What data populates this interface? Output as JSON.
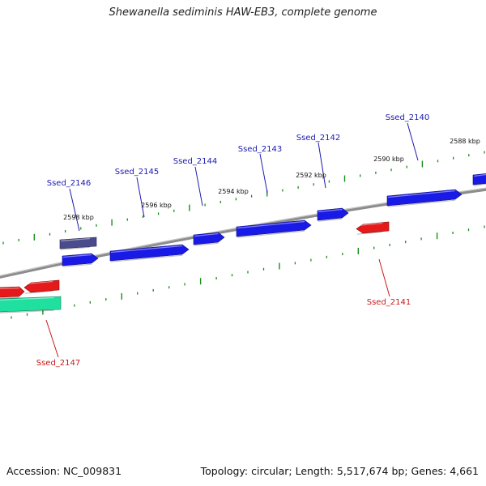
{
  "title": "Shewanella sediminis HAW-EB3, complete genome",
  "footer": {
    "accession": "Accession: NC_009831",
    "summary": "Topology: circular; Length: 5,517,674 bp; Genes: 4,661"
  },
  "colors": {
    "forward_strand": "#1a1ae6",
    "reverse_strand": "#e61a1a",
    "pseudogene": "#4a4a8c",
    "rna": "#20e0a0",
    "backbone": "#8c8c8c",
    "ticks": "#1a8c1a",
    "forward_label": "#1a1ab0",
    "reverse_label": "#c81a1a"
  },
  "position_labels": [
    "2598 kbp",
    "2596 kbp",
    "2594 kbp",
    "2592 kbp",
    "2590 kbp",
    "2588 kbp"
  ],
  "genes": [
    {
      "name": "Ssed_2140",
      "strand": "forward"
    },
    {
      "name": "Ssed_2141",
      "strand": "reverse"
    },
    {
      "name": "Ssed_2142",
      "strand": "forward"
    },
    {
      "name": "Ssed_2143",
      "strand": "forward"
    },
    {
      "name": "Ssed_2144",
      "strand": "forward"
    },
    {
      "name": "Ssed_2145",
      "strand": "forward"
    },
    {
      "name": "Ssed_2146",
      "strand": "forward"
    },
    {
      "name": "Ssed_2147",
      "strand": "reverse"
    }
  ]
}
